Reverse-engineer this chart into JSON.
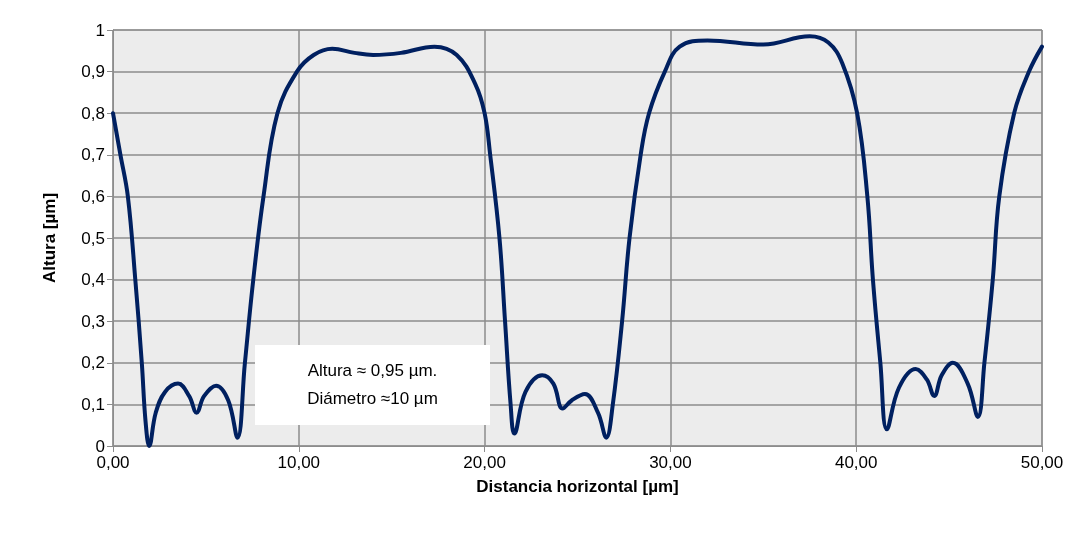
{
  "chart_data": {
    "type": "line",
    "xlabel": "Distancia horizontal [µm]",
    "ylabel": "Altura [µm]",
    "annotations": [
      "Altura ≈ 0,95 µm.",
      "Diámetro ≈10 µm"
    ],
    "xlim": [
      0,
      50
    ],
    "xticks": [
      {
        "value": 0,
        "label": "0,00"
      },
      {
        "value": 10,
        "label": "10,00"
      },
      {
        "value": 20,
        "label": "20,00"
      },
      {
        "value": 30,
        "label": "30,00"
      },
      {
        "value": 40,
        "label": "40,00"
      },
      {
        "value": 50,
        "label": "50,00"
      }
    ],
    "ylim": [
      0,
      1
    ],
    "yticks": [
      0,
      {
        "value": 0.1,
        "label": "0,1"
      },
      {
        "value": 0.2,
        "label": "0,2"
      },
      {
        "value": 0.3,
        "label": "0,3"
      },
      {
        "value": 0.4,
        "label": "0,4"
      },
      {
        "value": 0.5,
        "label": "0,5"
      },
      {
        "value": 0.6,
        "label": "0,6"
      },
      {
        "value": 0.7,
        "label": "0,7"
      },
      {
        "value": 0.8,
        "label": "0,8"
      },
      {
        "value": 0.9,
        "label": "0,9"
      },
      1
    ],
    "grid": true,
    "marker": "none",
    "line_style": "solid",
    "series": [
      {
        "color": "#002060",
        "x": [
          0,
          0.4,
          0.8,
          1.2,
          1.55,
          1.75,
          1.95,
          2.3,
          2.8,
          3.5,
          4.1,
          4.5,
          4.9,
          5.55,
          6.2,
          6.7,
          7.1,
          7.55,
          8.1,
          8.85,
          9.9,
          10.8,
          11.8,
          13,
          14,
          15.5,
          17.3,
          18.5,
          19.5,
          20,
          20.3,
          20.8,
          21.1,
          21.4,
          21.6,
          22.2,
          23.1,
          23.7,
          24.2,
          24.7,
          25.4,
          26.1,
          26.55,
          26.9,
          27.4,
          27.8,
          28.4,
          28.85,
          29.7,
          30.5,
          32,
          35,
          37.5,
          38.5,
          39.25,
          40.05,
          40.6,
          40.9,
          41.3,
          41.65,
          42.3,
          43.2,
          43.8,
          44.2,
          44.6,
          45.2,
          46,
          46.55,
          46.9,
          47.35,
          47.7,
          48.5,
          49.3,
          50
        ],
        "values": [
          0.8,
          0.7,
          0.6,
          0.4,
          0.2,
          0.06,
          0,
          0.08,
          0.13,
          0.15,
          0.12,
          0.08,
          0.12,
          0.145,
          0.11,
          0.02,
          0.2,
          0.4,
          0.6,
          0.8,
          0.9,
          0.94,
          0.955,
          0.945,
          0.94,
          0.945,
          0.96,
          0.94,
          0.87,
          0.8,
          0.7,
          0.5,
          0.3,
          0.1,
          0.03,
          0.13,
          0.17,
          0.15,
          0.09,
          0.11,
          0.125,
          0.08,
          0.02,
          0.1,
          0.3,
          0.5,
          0.7,
          0.8,
          0.9,
          0.96,
          0.975,
          0.965,
          0.985,
          0.97,
          0.92,
          0.8,
          0.6,
          0.4,
          0.2,
          0.04,
          0.14,
          0.185,
          0.16,
          0.12,
          0.17,
          0.2,
          0.15,
          0.07,
          0.2,
          0.4,
          0.6,
          0.8,
          0.9,
          0.96
        ]
      }
    ]
  }
}
